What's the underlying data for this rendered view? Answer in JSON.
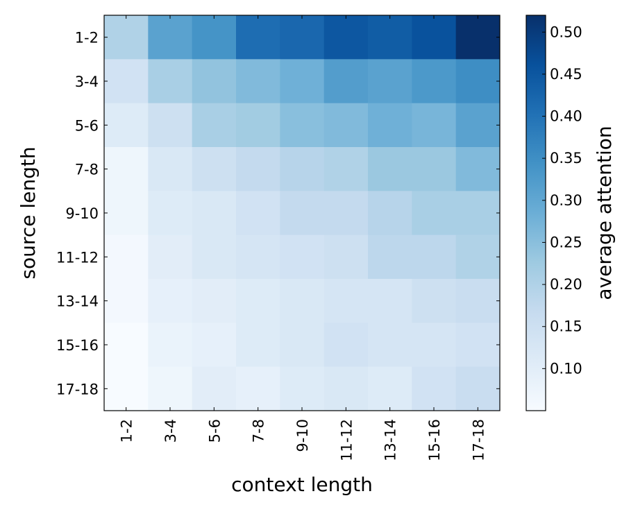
{
  "chart_data": {
    "type": "heatmap",
    "title": "",
    "xlabel": "context length",
    "ylabel": "source length",
    "x_categories": [
      "1-2",
      "3-4",
      "5-6",
      "7-8",
      "9-10",
      "11-12",
      "13-14",
      "15-16",
      "17-18"
    ],
    "y_categories": [
      "1-2",
      "3-4",
      "5-6",
      "7-8",
      "9-10",
      "11-12",
      "13-14",
      "15-16",
      "17-18"
    ],
    "values": [
      [
        0.2,
        0.31,
        0.34,
        0.41,
        0.42,
        0.45,
        0.44,
        0.46,
        0.52
      ],
      [
        0.14,
        0.21,
        0.24,
        0.26,
        0.28,
        0.32,
        0.31,
        0.33,
        0.35
      ],
      [
        0.11,
        0.15,
        0.21,
        0.22,
        0.25,
        0.26,
        0.28,
        0.27,
        0.31
      ],
      [
        0.07,
        0.12,
        0.15,
        0.17,
        0.19,
        0.2,
        0.23,
        0.23,
        0.26
      ],
      [
        0.07,
        0.11,
        0.12,
        0.14,
        0.17,
        0.17,
        0.19,
        0.21,
        0.21
      ],
      [
        0.06,
        0.1,
        0.12,
        0.13,
        0.14,
        0.15,
        0.18,
        0.18,
        0.2
      ],
      [
        0.06,
        0.09,
        0.1,
        0.11,
        0.12,
        0.13,
        0.13,
        0.15,
        0.16
      ],
      [
        0.04,
        0.08,
        0.09,
        0.11,
        0.12,
        0.14,
        0.13,
        0.13,
        0.14
      ],
      [
        0.05,
        0.07,
        0.1,
        0.09,
        0.11,
        0.12,
        0.11,
        0.14,
        0.16
      ]
    ],
    "colorbar": {
      "label": "average attention",
      "min": 0.05,
      "max": 0.52,
      "ticks": [
        "0.10",
        "0.15",
        "0.20",
        "0.25",
        "0.30",
        "0.35",
        "0.40",
        "0.45",
        "0.50"
      ]
    },
    "colormap": [
      "#f7fbff",
      "#deebf7",
      "#c6dbef",
      "#9ecae1",
      "#6baed6",
      "#4292c6",
      "#2171b5",
      "#08519c",
      "#08306b"
    ],
    "grid": false
  }
}
